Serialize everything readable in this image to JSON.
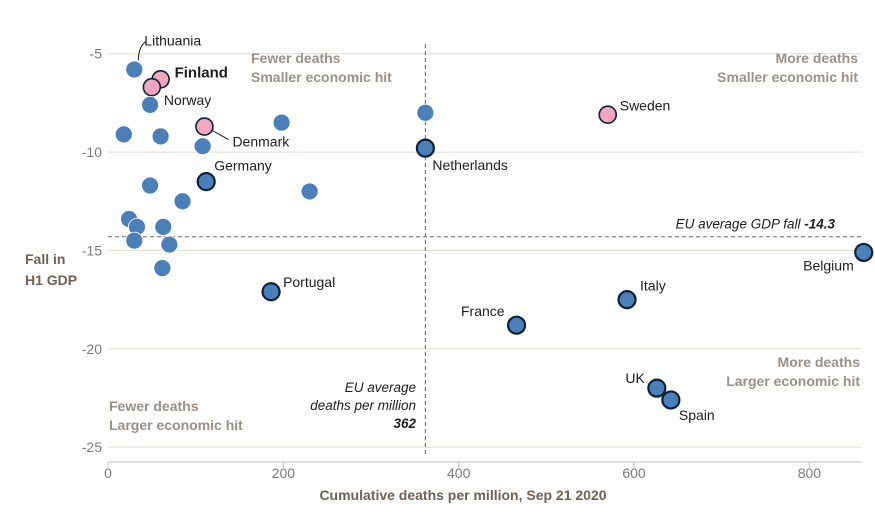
{
  "chart_data": {
    "type": "scatter",
    "xlabel": "Cumulative deaths per million, Sep 21 2020",
    "ylabel": [
      "Fall in",
      "H1 GDP"
    ],
    "xlim": [
      0,
      860
    ],
    "ylim": [
      -25.5,
      -4.2
    ],
    "xticks": [
      0,
      200,
      400,
      600,
      800
    ],
    "yticks": [
      -5,
      -10,
      -15,
      -20,
      -25
    ],
    "grid": "horizontal",
    "colors": {
      "default": "#4a7fb9",
      "highlight": "#f2a7bf",
      "outline": "#0d2235"
    },
    "quadrant_labels": {
      "top_left": [
        "Fewer deaths",
        "Smaller economic hit"
      ],
      "top_right": [
        "More deaths",
        "Smaller economic hit"
      ],
      "bottom_left": [
        "Fewer deaths",
        "Larger economic hit"
      ],
      "bottom_right": [
        "More deaths",
        "Larger economic hit"
      ]
    },
    "reference_lines": {
      "gdp": {
        "value": -14.3,
        "label": "EU average GDP fall",
        "value_text": "-14.3"
      },
      "deaths": {
        "value": 362,
        "label": [
          "EU average",
          "deaths per million"
        ],
        "value_text": "362"
      }
    },
    "points": [
      {
        "label": "Lithuania",
        "x": 30,
        "y": -5.8,
        "style": "plain"
      },
      {
        "label": "Finland",
        "x": 60,
        "y": -6.3,
        "style": "highlight"
      },
      {
        "label": "Norway",
        "x": 50,
        "y": -6.7,
        "style": "highlight"
      },
      {
        "label": "",
        "x": 48,
        "y": -7.6,
        "style": "plain"
      },
      {
        "label": "Sweden",
        "x": 570,
        "y": -8.1,
        "style": "highlight"
      },
      {
        "label": "",
        "x": 362,
        "y": -8.0,
        "style": "plain"
      },
      {
        "label": "",
        "x": 198,
        "y": -8.5,
        "style": "plain"
      },
      {
        "label": "Denmark",
        "x": 110,
        "y": -8.7,
        "style": "highlight"
      },
      {
        "label": "",
        "x": 18,
        "y": -9.1,
        "style": "plain"
      },
      {
        "label": "",
        "x": 60,
        "y": -9.2,
        "style": "plain"
      },
      {
        "label": "",
        "x": 108,
        "y": -9.7,
        "style": "plain"
      },
      {
        "label": "Netherlands",
        "x": 362,
        "y": -9.8,
        "style": "outlined"
      },
      {
        "label": "Germany",
        "x": 112,
        "y": -11.5,
        "style": "outlined"
      },
      {
        "label": "",
        "x": 48,
        "y": -11.7,
        "style": "plain"
      },
      {
        "label": "",
        "x": 230,
        "y": -12.0,
        "style": "plain"
      },
      {
        "label": "",
        "x": 85,
        "y": -12.5,
        "style": "plain"
      },
      {
        "label": "",
        "x": 24,
        "y": -13.4,
        "style": "plain"
      },
      {
        "label": "",
        "x": 33,
        "y": -13.8,
        "style": "plain"
      },
      {
        "label": "",
        "x": 63,
        "y": -13.8,
        "style": "plain"
      },
      {
        "label": "",
        "x": 30,
        "y": -14.5,
        "style": "plain"
      },
      {
        "label": "",
        "x": 70,
        "y": -14.7,
        "style": "plain"
      },
      {
        "label": "",
        "x": 62,
        "y": -15.9,
        "style": "plain"
      },
      {
        "label": "Belgium",
        "x": 862,
        "y": -15.1,
        "style": "outlined"
      },
      {
        "label": "Portugal",
        "x": 186,
        "y": -17.1,
        "style": "outlined"
      },
      {
        "label": "Italy",
        "x": 592,
        "y": -17.5,
        "style": "outlined"
      },
      {
        "label": "France",
        "x": 466,
        "y": -18.8,
        "style": "outlined"
      },
      {
        "label": "UK",
        "x": 626,
        "y": -22.0,
        "style": "outlined"
      },
      {
        "label": "Spain",
        "x": 642,
        "y": -22.6,
        "style": "outlined"
      }
    ]
  }
}
